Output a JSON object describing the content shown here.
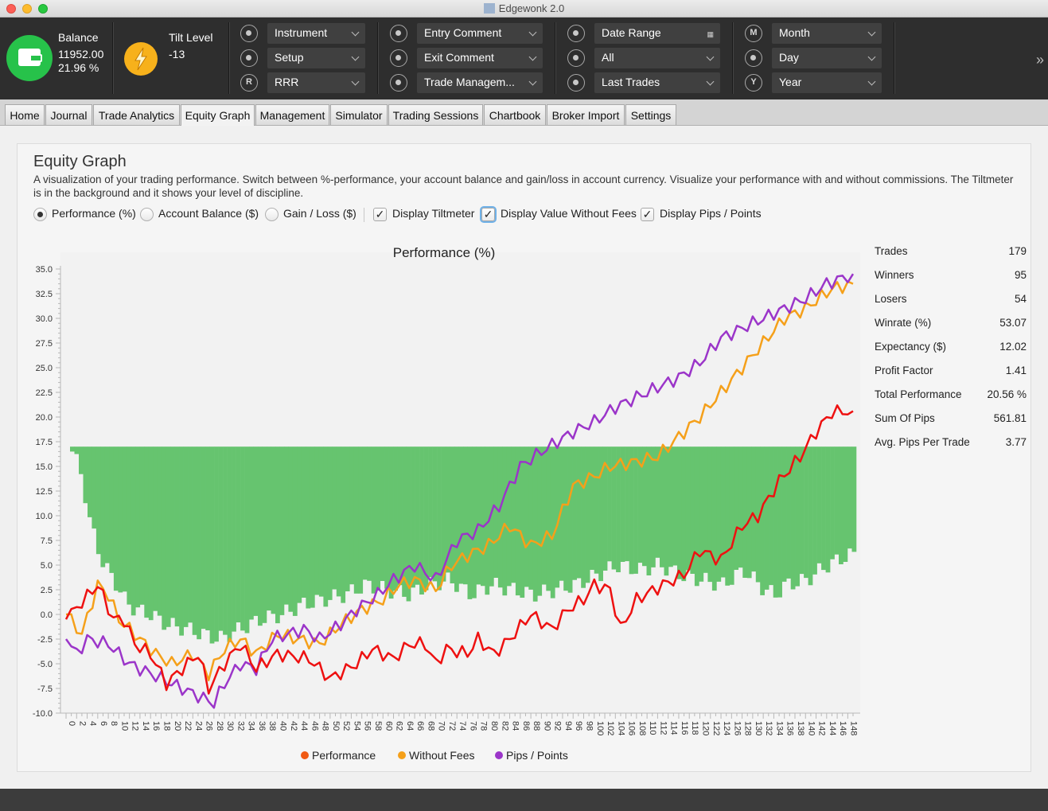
{
  "window": {
    "title": "Edgewonk 2.0"
  },
  "toolbar": {
    "balance_label": "Balance",
    "balance_value": "11952.00",
    "balance_pct": "21.96 %",
    "tilt_label": "Tilt Level",
    "tilt_value": "-13",
    "combos": [
      {
        "label": "Instrument",
        "icon": "instrument-icon"
      },
      {
        "label": "Setup",
        "icon": "setup-icon"
      },
      {
        "label": "RRR",
        "icon": "R"
      },
      {
        "label": "Entry Comment",
        "icon": "entry-comment-icon"
      },
      {
        "label": "Exit Comment",
        "icon": "exit-comment-icon"
      },
      {
        "label": "Trade Managem...",
        "icon": "trade-management-icon"
      },
      {
        "label": "Date Range",
        "icon": "calendar-icon"
      },
      {
        "label": "All",
        "icon": "calendar-icon"
      },
      {
        "label": "Last Trades",
        "icon": "last-trades-icon"
      },
      {
        "label": "Month",
        "icon": "M"
      },
      {
        "label": "Day",
        "icon": "calendar-icon"
      },
      {
        "label": "Year",
        "icon": "Y"
      }
    ],
    "more_icon": "chevron-double-right-icon"
  },
  "tabs": [
    "Home",
    "Journal",
    "Trade Analytics",
    "Equity Graph",
    "Management",
    "Simulator",
    "Trading Sessions",
    "Chartbook",
    "Broker Import",
    "Settings"
  ],
  "active_tab": "Equity Graph",
  "page": {
    "title": "Equity Graph",
    "description": "A visualization of your trading performance. Switch between %-performance, your account balance and gain/loss in account currency. Visualize your performance with and without commissions. The Tiltmeter is in the background and it shows your level of discipline.",
    "options": {
      "performance": "Performance (%)",
      "account_balance": "Account Balance ($)",
      "gain_loss": "Gain / Loss ($)",
      "display_tiltmeter": "Display Tiltmeter",
      "display_without_fees": "Display Value Without Fees",
      "display_pips": "Display Pips / Points"
    },
    "selected_option": "Performance (%)",
    "checked": {
      "display_tiltmeter": true,
      "display_without_fees": true,
      "display_pips": true
    }
  },
  "stats": [
    {
      "label": "Trades",
      "value": "179"
    },
    {
      "label": "Winners",
      "value": "95"
    },
    {
      "label": "Losers",
      "value": "54"
    },
    {
      "label": "Winrate (%)",
      "value": "53.07"
    },
    {
      "label": "Expectancy ($)",
      "value": "12.02"
    },
    {
      "label": "Profit Factor",
      "value": "1.41"
    },
    {
      "label": "Total Performance",
      "value": "20.56 %"
    },
    {
      "label": "Sum Of Pips",
      "value": "561.81"
    },
    {
      "label": "Avg. Pips Per Trade",
      "value": "3.77"
    }
  ],
  "chart_data": {
    "type": "line",
    "title": "Performance (%)",
    "ylim": [
      -10,
      35
    ],
    "y_ticks": [
      "35.0",
      "32.5",
      "30.0",
      "27.5",
      "25.0",
      "22.5",
      "20.0",
      "17.5",
      "15.0",
      "12.5",
      "10.0",
      "7.5",
      "5.0",
      "2.5",
      "0.0",
      "-2.5",
      "-5.0",
      "-7.5",
      "-10.0"
    ],
    "x_range": [
      0,
      149
    ],
    "x_tick_step": 2,
    "legend_position": "bottom",
    "colors": {
      "performance": "#ee1111",
      "without_fees": "#f5a01a",
      "pips": "#9b35c9",
      "tiltmeter": "#66c46f"
    },
    "series": [
      {
        "name": "Performance",
        "key": "performance",
        "points": [
          [
            0,
            -0.5
          ],
          [
            6,
            3
          ],
          [
            9,
            -0.5
          ],
          [
            11,
            -0.5
          ],
          [
            13,
            -3
          ],
          [
            16,
            -4
          ],
          [
            19,
            -7
          ],
          [
            25,
            -4
          ],
          [
            27,
            -7.5
          ],
          [
            30,
            -5
          ],
          [
            33,
            -3
          ],
          [
            36,
            -5.5
          ],
          [
            40,
            -4
          ],
          [
            46,
            -4.5
          ],
          [
            50,
            -6.5
          ],
          [
            55,
            -5
          ],
          [
            58,
            -3.5
          ],
          [
            62,
            -4.5
          ],
          [
            65,
            -3
          ],
          [
            68,
            -3
          ],
          [
            70,
            -5
          ],
          [
            72,
            -3.5
          ],
          [
            76,
            -4
          ],
          [
            78,
            -2.5
          ],
          [
            81,
            -4
          ],
          [
            84,
            -2.5
          ],
          [
            88,
            0
          ],
          [
            92,
            -1.5
          ],
          [
            95,
            0.5
          ],
          [
            98,
            1.5
          ],
          [
            100,
            3
          ],
          [
            103,
            2.5
          ],
          [
            105,
            -1.5
          ],
          [
            108,
            1.5
          ],
          [
            113,
            3
          ],
          [
            117,
            4
          ],
          [
            120,
            6.5
          ],
          [
            124,
            5.5
          ],
          [
            128,
            9
          ],
          [
            131,
            10
          ],
          [
            135,
            13.5
          ],
          [
            139,
            16
          ],
          [
            142,
            18.5
          ],
          [
            145,
            20.5
          ],
          [
            149,
            20.6
          ]
        ]
      },
      {
        "name": "Without Fees",
        "key": "without_fees",
        "points": [
          [
            0,
            0
          ],
          [
            3,
            -2
          ],
          [
            6,
            3
          ],
          [
            8,
            2
          ],
          [
            10,
            -0.5
          ],
          [
            13,
            -2
          ],
          [
            17,
            -4
          ],
          [
            20,
            -5
          ],
          [
            24,
            -4
          ],
          [
            27,
            -6
          ],
          [
            30,
            -3.5
          ],
          [
            33,
            -2.5
          ],
          [
            36,
            -4
          ],
          [
            40,
            -2
          ],
          [
            44,
            -2.5
          ],
          [
            48,
            -3
          ],
          [
            52,
            -1
          ],
          [
            56,
            0.5
          ],
          [
            60,
            1.5
          ],
          [
            63,
            3
          ],
          [
            66,
            3.5
          ],
          [
            70,
            2.5
          ],
          [
            73,
            5
          ],
          [
            76,
            6
          ],
          [
            80,
            7
          ],
          [
            84,
            9
          ],
          [
            88,
            7
          ],
          [
            92,
            8
          ],
          [
            96,
            13
          ],
          [
            100,
            14
          ],
          [
            103,
            15
          ],
          [
            108,
            15.5
          ],
          [
            112,
            16
          ],
          [
            116,
            18
          ],
          [
            120,
            20
          ],
          [
            124,
            22.5
          ],
          [
            128,
            25
          ],
          [
            132,
            27.5
          ],
          [
            136,
            30
          ],
          [
            140,
            31
          ],
          [
            145,
            33
          ],
          [
            149,
            33.5
          ]
        ]
      },
      {
        "name": "Pips / Points",
        "key": "pips",
        "points": [
          [
            0,
            -2.5
          ],
          [
            2,
            -4
          ],
          [
            4,
            -2.5
          ],
          [
            8,
            -3
          ],
          [
            12,
            -5
          ],
          [
            16,
            -6
          ],
          [
            20,
            -7
          ],
          [
            24,
            -8
          ],
          [
            28,
            -9
          ],
          [
            30,
            -7
          ],
          [
            33,
            -5
          ],
          [
            36,
            -5.5
          ],
          [
            39,
            -2.5
          ],
          [
            42,
            -2
          ],
          [
            45,
            -1.5
          ],
          [
            48,
            -2.5
          ],
          [
            52,
            -1
          ],
          [
            55,
            0.5
          ],
          [
            59,
            2
          ],
          [
            62,
            3.5
          ],
          [
            66,
            5
          ],
          [
            70,
            3.5
          ],
          [
            74,
            7.5
          ],
          [
            78,
            8.5
          ],
          [
            82,
            11
          ],
          [
            86,
            15
          ],
          [
            90,
            16.5
          ],
          [
            93,
            17.5
          ],
          [
            96,
            18.5
          ],
          [
            100,
            19.5
          ],
          [
            104,
            21
          ],
          [
            108,
            22
          ],
          [
            112,
            23
          ],
          [
            116,
            24
          ],
          [
            120,
            25.5
          ],
          [
            124,
            28
          ],
          [
            128,
            29
          ],
          [
            132,
            30
          ],
          [
            136,
            31
          ],
          [
            140,
            32
          ],
          [
            144,
            33.5
          ],
          [
            149,
            34.5
          ]
        ]
      }
    ],
    "tiltmeter_base": 17,
    "tiltmeter_lows": [
      [
        0,
        16.5
      ],
      [
        2,
        14
      ],
      [
        3,
        10
      ],
      [
        6,
        5
      ],
      [
        8,
        3.5
      ],
      [
        10,
        1.5
      ],
      [
        12,
        0.5
      ],
      [
        15,
        0
      ],
      [
        18,
        -1
      ],
      [
        22,
        -1.5
      ],
      [
        25,
        -2
      ],
      [
        28,
        -2.5
      ],
      [
        32,
        -1.5
      ],
      [
        34,
        -1
      ],
      [
        36,
        -0.5
      ],
      [
        40,
        0
      ],
      [
        44,
        1
      ],
      [
        48,
        1.5
      ],
      [
        52,
        2
      ],
      [
        56,
        3
      ],
      [
        60,
        2.5
      ],
      [
        64,
        2
      ],
      [
        68,
        3
      ],
      [
        72,
        3.5
      ],
      [
        76,
        2
      ],
      [
        80,
        3
      ],
      [
        84,
        2.5
      ],
      [
        88,
        2
      ],
      [
        92,
        2.5
      ],
      [
        96,
        3
      ],
      [
        100,
        4
      ],
      [
        104,
        5
      ],
      [
        108,
        4.5
      ],
      [
        112,
        5
      ],
      [
        116,
        4
      ],
      [
        120,
        3.5
      ],
      [
        124,
        3
      ],
      [
        128,
        4.5
      ],
      [
        132,
        2.5
      ],
      [
        134,
        2
      ],
      [
        136,
        3
      ],
      [
        140,
        3.5
      ],
      [
        144,
        5
      ],
      [
        148,
        6
      ]
    ]
  },
  "legend": [
    "Performance",
    "Without Fees",
    "Pips / Points"
  ]
}
